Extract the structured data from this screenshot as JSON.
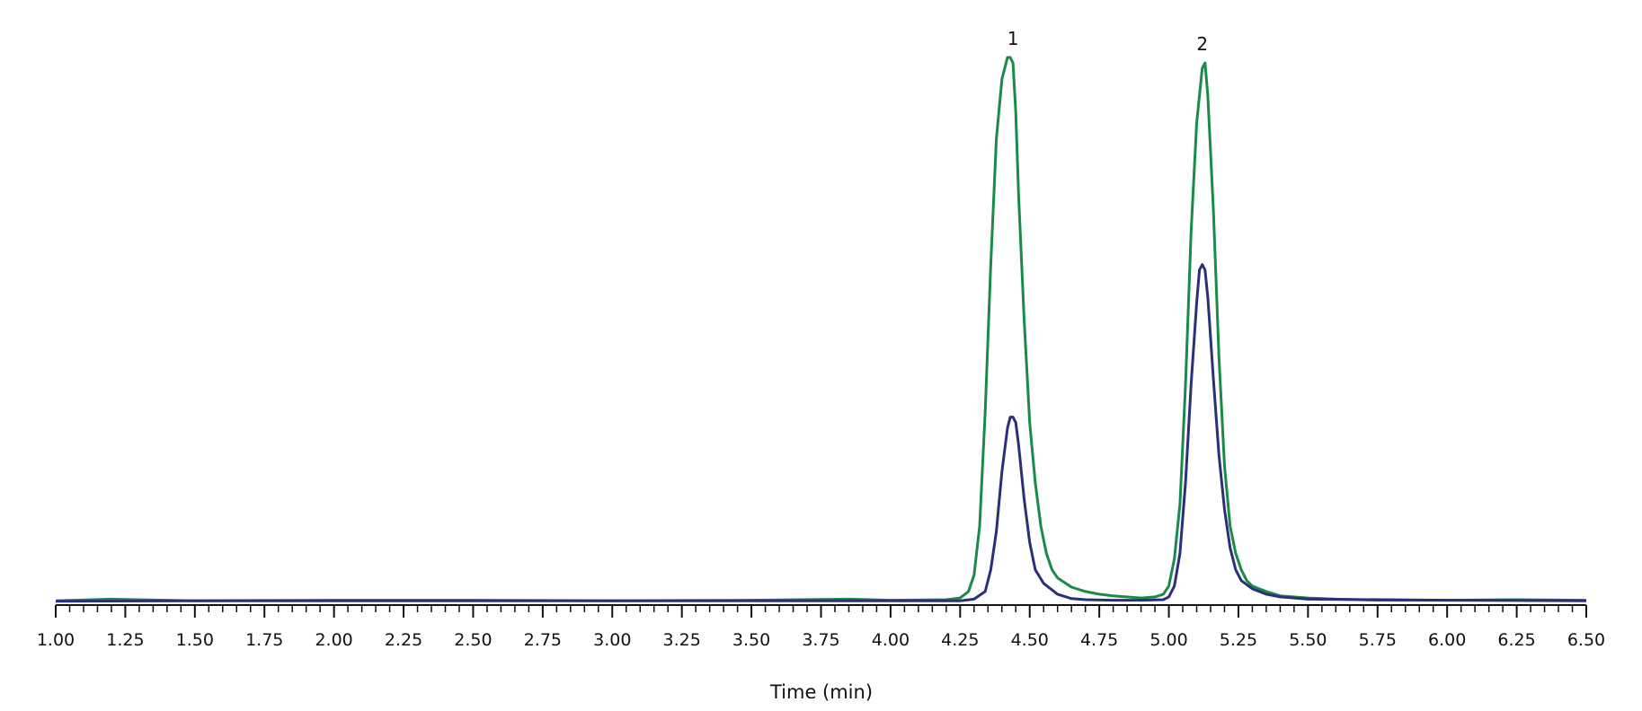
{
  "chart_data": {
    "type": "line",
    "title": "",
    "xlabel": "Time (min)",
    "ylabel": "",
    "xlim": [
      1.0,
      6.5
    ],
    "ylim": [
      0,
      100
    ],
    "xticks": [
      "1.00",
      "1.25",
      "1.50",
      "1.75",
      "2.00",
      "2.25",
      "2.50",
      "2.75",
      "3.00",
      "3.25",
      "3.50",
      "3.75",
      "4.00",
      "4.25",
      "4.50",
      "4.75",
      "5.00",
      "5.25",
      "5.50",
      "5.75",
      "6.00",
      "6.25",
      "6.50"
    ],
    "grid": false,
    "legend": "none",
    "annotations": [
      {
        "text": "1",
        "x": 4.44,
        "y": 100
      },
      {
        "text": "2",
        "x": 5.12,
        "y": 99
      }
    ],
    "series": [
      {
        "color": "#1a8a4a",
        "x": [
          1.0,
          1.2,
          1.5,
          2.0,
          2.5,
          3.0,
          3.5,
          3.85,
          4.0,
          4.2,
          4.25,
          4.28,
          4.3,
          4.32,
          4.34,
          4.36,
          4.38,
          4.4,
          4.42,
          4.43,
          4.44,
          4.45,
          4.46,
          4.48,
          4.5,
          4.52,
          4.54,
          4.56,
          4.58,
          4.6,
          4.65,
          4.7,
          4.75,
          4.8,
          4.9,
          4.95,
          4.98,
          5.0,
          5.02,
          5.04,
          5.06,
          5.08,
          5.1,
          5.12,
          5.13,
          5.14,
          5.16,
          5.18,
          5.2,
          5.22,
          5.24,
          5.26,
          5.28,
          5.3,
          5.35,
          5.4,
          5.5,
          5.6,
          5.75,
          6.0,
          6.25,
          6.5
        ],
        "y": [
          0.3,
          0.6,
          0.3,
          0.4,
          0.4,
          0.3,
          0.4,
          0.6,
          0.4,
          0.5,
          0.8,
          2,
          5,
          14,
          35,
          62,
          85,
          96,
          100,
          100,
          99,
          90,
          75,
          52,
          33,
          22,
          14,
          9,
          6,
          4.5,
          2.8,
          2.0,
          1.5,
          1.2,
          0.8,
          1.0,
          1.5,
          3,
          8,
          18,
          40,
          68,
          88,
          98,
          99,
          93,
          72,
          45,
          25,
          14,
          9,
          6,
          4,
          3,
          2.0,
          1.2,
          0.8,
          0.6,
          0.4,
          0.4,
          0.5,
          0.4
        ]
      },
      {
        "color": "#2b2f7a",
        "x": [
          1.0,
          1.5,
          2.0,
          3.0,
          4.0,
          4.25,
          4.3,
          4.34,
          4.36,
          4.38,
          4.4,
          4.42,
          4.43,
          4.44,
          4.45,
          4.46,
          4.48,
          4.5,
          4.52,
          4.55,
          4.6,
          4.65,
          4.7,
          4.8,
          4.9,
          4.98,
          5.0,
          5.02,
          5.04,
          5.06,
          5.08,
          5.1,
          5.11,
          5.12,
          5.13,
          5.14,
          5.16,
          5.18,
          5.2,
          5.22,
          5.24,
          5.26,
          5.3,
          5.35,
          5.4,
          5.5,
          6.0,
          6.5
        ],
        "y": [
          0.2,
          0.3,
          0.3,
          0.3,
          0.3,
          0.3,
          0.6,
          2,
          6,
          13,
          24,
          32,
          34,
          34,
          33,
          29,
          19,
          11,
          6,
          3.5,
          1.5,
          0.7,
          0.5,
          0.4,
          0.4,
          0.5,
          1,
          3,
          9,
          22,
          40,
          55,
          61,
          62,
          61,
          56,
          41,
          27,
          17,
          10,
          6,
          4,
          2.5,
          1.5,
          1.0,
          0.6,
          0.4,
          0.3
        ]
      }
    ]
  }
}
